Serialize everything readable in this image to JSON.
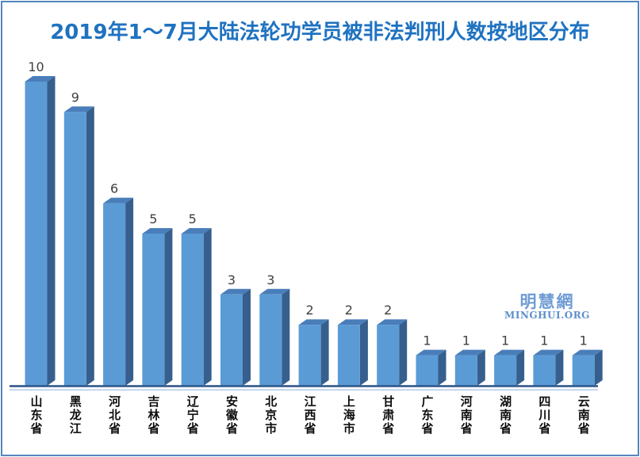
{
  "title": "2019年1～7月大陆法轮功学员被非法判刑人数按地区分布",
  "watermark": {
    "cn": "明慧網",
    "en": "MINGHUI.ORG"
  },
  "colors": {
    "title": "#1f72c0",
    "border": "#5586be",
    "bar_front": "#5b9bd5",
    "bar_top": "#4a7eba",
    "bar_side": "#365f8d",
    "axis_dark": "#30598c",
    "axis_light": "#a6c3e3",
    "data_label": "#3f3f3f",
    "category_label": "#0d0d0d",
    "watermark_cn": "#6f9cd3",
    "watermark_en": "#5d8fc9"
  },
  "chart_data": {
    "type": "bar",
    "style": "3d-column",
    "title": "2019年1～7月大陆法轮功学员被非法判刑人数按地区分布",
    "categories": [
      "山东省",
      "黑龙江",
      "河北省",
      "吉林省",
      "辽宁省",
      "安徽省",
      "北京市",
      "江西省",
      "上海市",
      "甘肃省",
      "广东省",
      "河南省",
      "湖南省",
      "四川省",
      "云南省"
    ],
    "values": [
      10,
      9,
      6,
      5,
      5,
      3,
      3,
      2,
      2,
      2,
      1,
      1,
      1,
      1,
      1
    ],
    "xlabel": "",
    "ylabel": "",
    "ylim": [
      0,
      10
    ],
    "grid": false,
    "legend": null,
    "data_labels": true,
    "category_label_orientation": "vertical"
  }
}
